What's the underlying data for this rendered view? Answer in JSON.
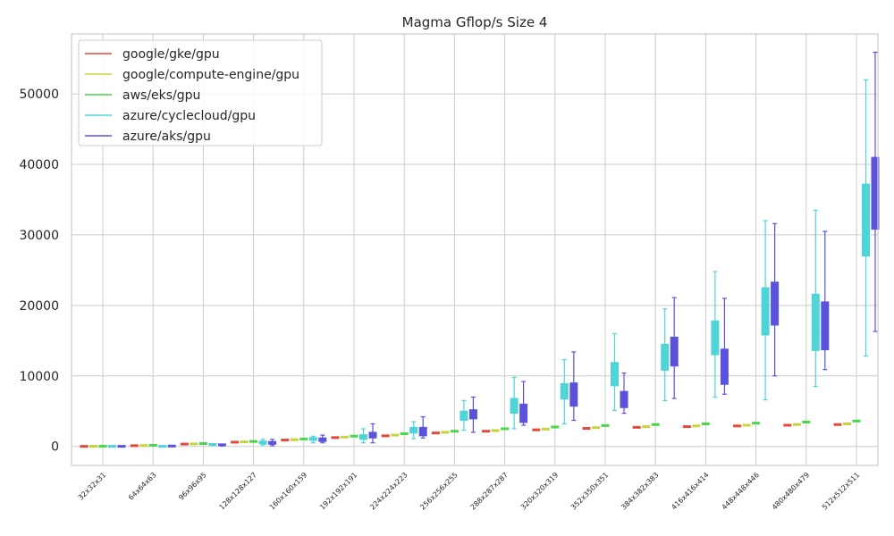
{
  "chart_data": {
    "type": "box",
    "title": "Magma Gflop/s Size 4",
    "xlabel": "",
    "ylabel": "",
    "ylim": [
      -2700,
      58500
    ],
    "yticks": [
      0,
      10000,
      20000,
      30000,
      40000,
      50000
    ],
    "grid": true,
    "legend": {
      "position": "top-left"
    },
    "categories": [
      "32x32x31",
      "64x64x63",
      "96x96x95",
      "128x128x127",
      "160x160x159",
      "192x192x191",
      "224x224x223",
      "256x256x255",
      "288x287x287",
      "320x320x319",
      "352x350x351",
      "384x382x383",
      "416x416x414",
      "448x448x446",
      "480x480x479",
      "512x512x511"
    ],
    "series": [
      {
        "name": "google/gke/gpu",
        "color": "#e24a3b",
        "boxes": [
          [
            5,
            5,
            5,
            5,
            5
          ],
          [
            100,
            100,
            100,
            100,
            100
          ],
          [
            330,
            330,
            330,
            330,
            330
          ],
          [
            600,
            600,
            600,
            600,
            600
          ],
          [
            900,
            900,
            900,
            900,
            900
          ],
          [
            1250,
            1250,
            1250,
            1250,
            1250
          ],
          [
            1500,
            1500,
            1500,
            1500,
            1500
          ],
          [
            1900,
            1900,
            1900,
            1900,
            1900
          ],
          [
            2150,
            2150,
            2150,
            2150,
            2150
          ],
          [
            2350,
            2350,
            2350,
            2350,
            2350
          ],
          [
            2550,
            2550,
            2550,
            2550,
            2550
          ],
          [
            2700,
            2700,
            2700,
            2700,
            2700
          ],
          [
            2800,
            2800,
            2800,
            2800,
            2800
          ],
          [
            2900,
            2900,
            2900,
            2900,
            2900
          ],
          [
            3000,
            3000,
            3000,
            3000,
            3000
          ],
          [
            3100,
            3100,
            3100,
            3100,
            3100
          ]
        ]
      },
      {
        "name": "google/compute-engine/gpu",
        "color": "#c9d33d",
        "boxes": [
          [
            20,
            20,
            20,
            20,
            20
          ],
          [
            120,
            120,
            120,
            120,
            120
          ],
          [
            350,
            350,
            350,
            350,
            350
          ],
          [
            640,
            640,
            640,
            640,
            640
          ],
          [
            950,
            950,
            950,
            950,
            950
          ],
          [
            1320,
            1320,
            1320,
            1320,
            1320
          ],
          [
            1600,
            1600,
            1600,
            1600,
            1600
          ],
          [
            2000,
            2000,
            2000,
            2000,
            2000
          ],
          [
            2250,
            2250,
            2250,
            2250,
            2250
          ],
          [
            2450,
            2450,
            2450,
            2450,
            2450
          ],
          [
            2650,
            2650,
            2650,
            2650,
            2650
          ],
          [
            2800,
            2800,
            2800,
            2800,
            2800
          ],
          [
            2900,
            2900,
            2900,
            2900,
            2900
          ],
          [
            3000,
            3000,
            3000,
            3000,
            3000
          ],
          [
            3100,
            3100,
            3100,
            3100,
            3100
          ],
          [
            3200,
            3200,
            3200,
            3200,
            3200
          ]
        ]
      },
      {
        "name": "aws/eks/gpu",
        "color": "#49d849",
        "boxes": [
          [
            30,
            30,
            30,
            30,
            30
          ],
          [
            150,
            150,
            150,
            150,
            150
          ],
          [
            400,
            400,
            400,
            400,
            400
          ],
          [
            700,
            700,
            700,
            700,
            700
          ],
          [
            1050,
            1050,
            1050,
            1050,
            1050
          ],
          [
            1450,
            1450,
            1450,
            1450,
            1450
          ],
          [
            1800,
            1800,
            1800,
            1800,
            1800
          ],
          [
            2150,
            2150,
            2150,
            2150,
            2150
          ],
          [
            2500,
            2500,
            2500,
            2500,
            2500
          ],
          [
            2750,
            2750,
            2750,
            2750,
            2750
          ],
          [
            2950,
            2950,
            2950,
            2950,
            2950
          ],
          [
            3100,
            3100,
            3100,
            3100,
            3100
          ],
          [
            3200,
            3200,
            3200,
            3200,
            3200
          ],
          [
            3300,
            3300,
            3300,
            3300,
            3300
          ],
          [
            3450,
            3450,
            3450,
            3450,
            3450
          ],
          [
            3600,
            3600,
            3600,
            3600,
            3600
          ]
        ]
      },
      {
        "name": "azure/cyclecloud/gpu",
        "color": "#4fd4d8",
        "boxes": [
          [
            -20,
            -10,
            0,
            10,
            20
          ],
          [
            -20,
            -10,
            0,
            10,
            20
          ],
          [
            150,
            200,
            220,
            280,
            320
          ],
          [
            200,
            350,
            500,
            750,
            1000
          ],
          [
            500,
            850,
            1050,
            1250,
            1450
          ],
          [
            500,
            1000,
            1300,
            1650,
            2500
          ],
          [
            1100,
            1900,
            2200,
            2700,
            3500
          ],
          [
            2300,
            3700,
            4400,
            5000,
            6500
          ],
          [
            2500,
            4700,
            5900,
            6800,
            9800
          ],
          [
            3200,
            6700,
            7800,
            8900,
            12300
          ],
          [
            5100,
            8600,
            10100,
            11900,
            16000
          ],
          [
            6500,
            10800,
            12800,
            14500,
            19500
          ],
          [
            7000,
            13000,
            15500,
            17800,
            24800
          ],
          [
            6600,
            15800,
            19000,
            22500,
            32000
          ],
          [
            8500,
            13600,
            16500,
            21600,
            33500
          ],
          [
            12800,
            27000,
            32000,
            37200,
            52000
          ]
        ]
      },
      {
        "name": "azure/aks/gpu",
        "color": "#5b52dc",
        "boxes": [
          [
            -30,
            -20,
            0,
            10,
            20
          ],
          [
            -20,
            0,
            20,
            50,
            80
          ],
          [
            50,
            120,
            180,
            230,
            280
          ],
          [
            100,
            300,
            500,
            700,
            1000
          ],
          [
            500,
            700,
            900,
            1200,
            1600
          ],
          [
            500,
            1200,
            1500,
            2000,
            3200
          ],
          [
            1200,
            1500,
            1900,
            2700,
            4200
          ],
          [
            2000,
            3900,
            4500,
            5200,
            7000
          ],
          [
            3000,
            3400,
            4300,
            6000,
            9200
          ],
          [
            3700,
            5700,
            7000,
            9000,
            13400
          ],
          [
            4700,
            5500,
            6500,
            7800,
            10400
          ],
          [
            6800,
            11400,
            13500,
            15500,
            21100
          ],
          [
            7400,
            8800,
            10500,
            13800,
            21000
          ],
          [
            10000,
            17200,
            18500,
            23300,
            31600
          ],
          [
            10900,
            13700,
            16500,
            20500,
            30500
          ],
          [
            16300,
            30800,
            35000,
            41000,
            55900
          ]
        ]
      }
    ]
  }
}
